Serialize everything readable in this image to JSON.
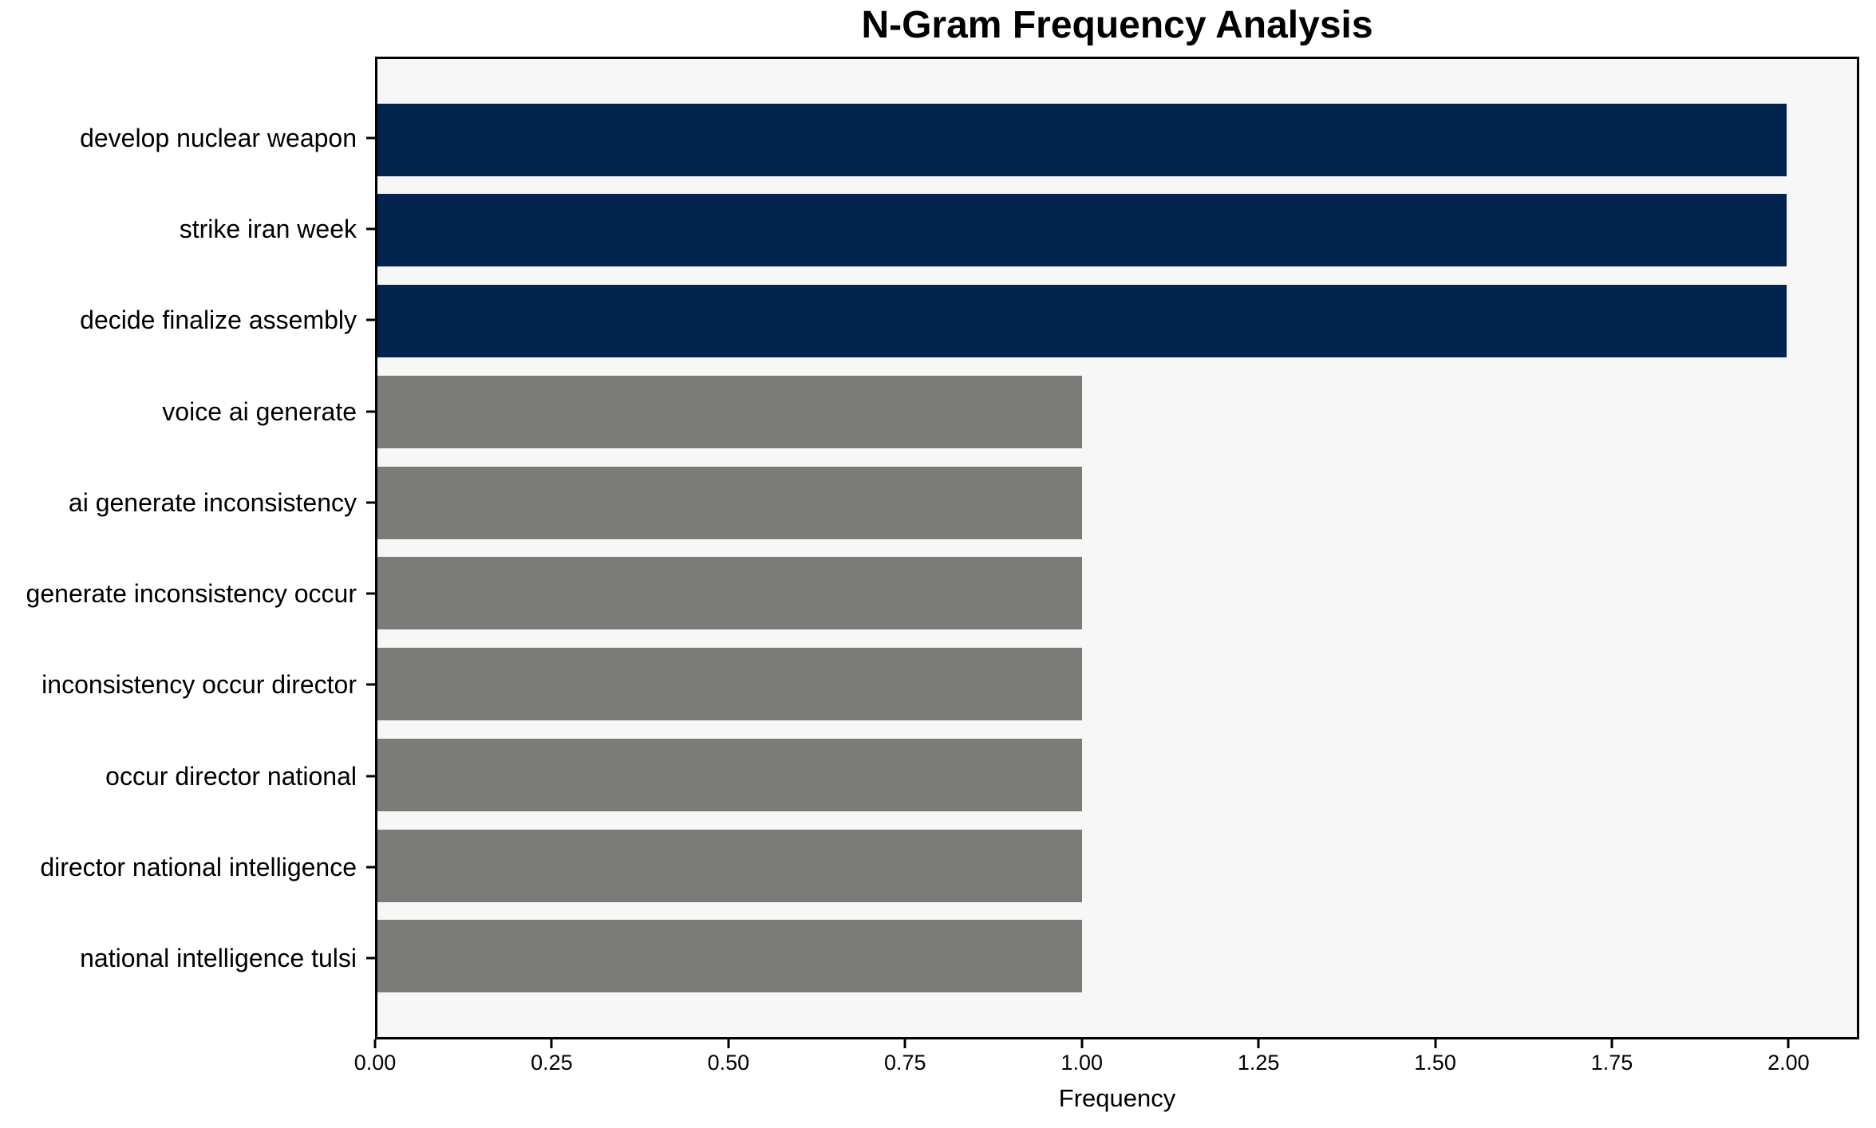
{
  "chart_data": {
    "type": "bar",
    "orientation": "horizontal",
    "title": "N-Gram Frequency Analysis",
    "xlabel": "Frequency",
    "ylabel": "",
    "categories": [
      "develop nuclear weapon",
      "strike iran week",
      "decide finalize assembly",
      "voice ai generate",
      "ai generate inconsistency",
      "generate inconsistency occur",
      "inconsistency occur director",
      "occur director national",
      "director national intelligence",
      "national intelligence tulsi"
    ],
    "values": [
      2,
      2,
      2,
      1,
      1,
      1,
      1,
      1,
      1,
      1
    ],
    "bar_colors": [
      "#02254f",
      "#02254f",
      "#02254f",
      "#7b7b77",
      "#7b7b77",
      "#7b7b77",
      "#7b7b77",
      "#7b7b77",
      "#7b7b77",
      "#7b7b77"
    ],
    "xlim": [
      0,
      2.1
    ],
    "x_ticks": [
      {
        "value": 0.0,
        "label": "0.00"
      },
      {
        "value": 0.25,
        "label": "0.25"
      },
      {
        "value": 0.5,
        "label": "0.50"
      },
      {
        "value": 0.75,
        "label": "0.75"
      },
      {
        "value": 1.0,
        "label": "1.00"
      },
      {
        "value": 1.25,
        "label": "1.25"
      },
      {
        "value": 1.5,
        "label": "1.50"
      },
      {
        "value": 1.75,
        "label": "1.75"
      },
      {
        "value": 2.0,
        "label": "2.00"
      }
    ],
    "grid": false,
    "legend": "none",
    "colors": {
      "high_frequency_bar": "#02254f",
      "low_frequency_bar": "#7b7b77",
      "plot_background": "#f7f7f8",
      "figure_background": "#ffffff",
      "spine": "#000000",
      "text": "#000000"
    }
  }
}
